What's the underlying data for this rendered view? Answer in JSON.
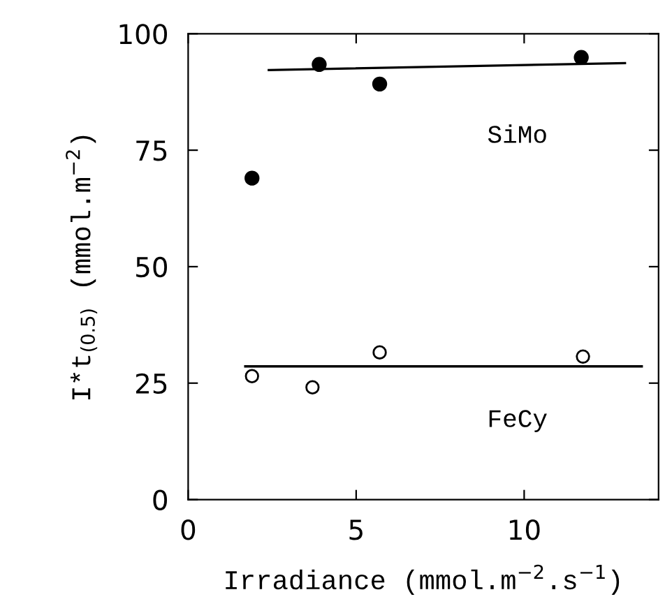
{
  "chart_data": {
    "type": "scatter",
    "xlabel": "Irradiance (mmol.m$^{−2}$.s$^{−1}$)",
    "ylabel": "I*t$_{(0.5)}$ (mmol.m$^{−2}$)",
    "xlim": [
      0,
      14
    ],
    "ylim": [
      0,
      100
    ],
    "xticks": [
      0,
      5,
      10
    ],
    "yticks": [
      0,
      25,
      50,
      75,
      100
    ],
    "grid": false,
    "legend": false,
    "marker": "circle",
    "series": [
      {
        "name": "SiMo",
        "color": "#000000",
        "x": [
          1.9,
          3.9,
          5.7,
          11.7
        ],
        "values": [
          69,
          93.4,
          89.2,
          94.9
        ]
      },
      {
        "type": "line",
        "marker": "none",
        "color": "#000000",
        "x": [
          2.4,
          13.0
        ],
        "values": [
          92.2,
          93.7
        ]
      },
      {
        "name": "FeCy",
        "color": "#000000",
        "x": [
          1.9,
          3.7,
          5.7,
          11.75
        ],
        "values": [
          26.5,
          24.1,
          31.6,
          30.7
        ]
      },
      {
        "type": "line",
        "marker": "none",
        "color": "#000000",
        "x": [
          1.7,
          13.5
        ],
        "values": [
          28.6,
          28.6
        ]
      }
    ]
  }
}
